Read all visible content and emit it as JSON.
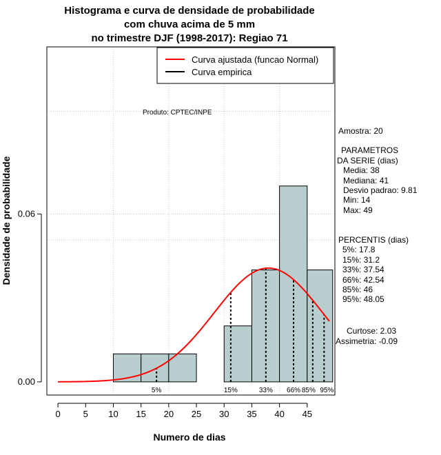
{
  "chart_data": {
    "type": "bar",
    "title": [
      "Histograma e curva de densidade de probabilidade",
      "com chuva acima de 5 mm",
      "no trimestre DJF (1998-2017): Regiao 71"
    ],
    "xlabel": "Numero de dias",
    "ylabel": "Densidade de probabilidade",
    "xlim": [
      -2,
      50
    ],
    "ylim": [
      -0.0047,
      0.1197
    ],
    "x_ticks": [
      0,
      5,
      10,
      15,
      20,
      25,
      30,
      35,
      40,
      45
    ],
    "y_ticks": [
      0.0,
      0.06
    ],
    "y_tick_labels": [
      "0.00",
      "0.06"
    ],
    "grid_x": [
      10,
      20,
      30,
      40
    ],
    "grid_y": [
      0.06,
      0.1
    ],
    "grid_y_half": 0.06,
    "bins": [
      {
        "x0": 10,
        "x1": 15,
        "density": 0.01
      },
      {
        "x0": 15,
        "x1": 20,
        "density": 0.01
      },
      {
        "x0": 20,
        "x1": 25,
        "density": 0.01
      },
      {
        "x0": 30,
        "x1": 35,
        "density": 0.02
      },
      {
        "x0": 35,
        "x1": 40,
        "density": 0.04
      },
      {
        "x0": 40,
        "x1": 45,
        "density": 0.07
      },
      {
        "x0": 45,
        "x1": 50,
        "density": 0.04
      }
    ],
    "normal_fit": {
      "mean": 38,
      "sd": 9.81,
      "x_from": 0,
      "x_to": 49
    },
    "percentiles": [
      {
        "label": "5%",
        "value": 17.8
      },
      {
        "label": "15%",
        "value": 31.2
      },
      {
        "label": "33%",
        "value": 37.54
      },
      {
        "label": "66%",
        "value": 42.54
      },
      {
        "label": "85%",
        "value": 46
      },
      {
        "label": "95%",
        "value": 48.05
      }
    ],
    "legend": [
      {
        "label": "Curva ajustada (funcao Normal)",
        "color": "#ff0000"
      },
      {
        "label": "Curva empirica",
        "color": "#000000"
      }
    ],
    "legend_position": "top-right",
    "bar_fill": "#b8cece",
    "curve_color": "#ff0000"
  },
  "annotation": "Produto: CPTEC/INPE",
  "stats": {
    "amostra": "Amostra: 20",
    "params_title_1": "PARAMETROS",
    "params_title_2": "DA SERIE (dias)",
    "media": "Media: 38",
    "mediana": "Mediana: 41",
    "desvio": "Desvio padrao: 9.81",
    "min": "Min: 14",
    "max": "Max: 49",
    "percentis_title": "PERCENTIS (dias)",
    "p5": "5%: 17.8",
    "p15": "15%: 31.2",
    "p33": "33%: 37.54",
    "p66": "66%: 42.54",
    "p85": "85%: 46",
    "p95": "95%: 48.05",
    "curtose": "Curtose: 2.03",
    "assimetria": "Assimetria: -0.09"
  }
}
